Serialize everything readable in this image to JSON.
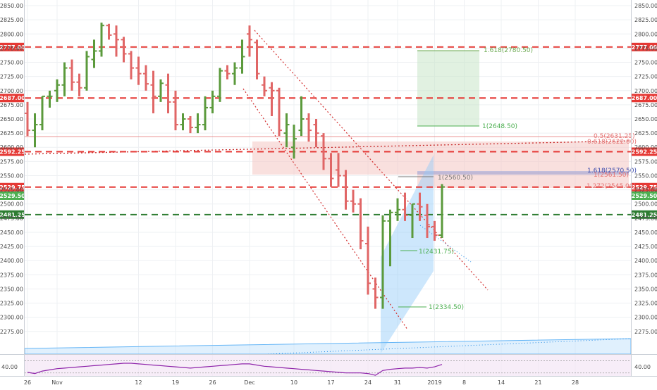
{
  "chart_data": {
    "type": "ohlc",
    "title": "",
    "xlabel": "",
    "ylabel": "",
    "ylim": [
      2235,
      2860
    ],
    "grid": true,
    "y_ticks": [
      2275,
      2300,
      2325,
      2350,
      2375,
      2400,
      2425,
      2450,
      2475,
      2500,
      2525,
      2550,
      2575,
      2600,
      2625,
      2650,
      2675,
      2700,
      2725,
      2750,
      2775,
      2800,
      2825,
      2850
    ],
    "x_ticks": [
      {
        "label": "26",
        "bar": 0
      },
      {
        "label": "Nov",
        "bar": 4
      },
      {
        "label": "12",
        "bar": 15
      },
      {
        "label": "19",
        "bar": 20
      },
      {
        "label": "26",
        "bar": 25
      },
      {
        "label": "Dec",
        "bar": 30
      },
      {
        "label": "10",
        "bar": 36
      },
      {
        "label": "17",
        "bar": 41
      },
      {
        "label": "24",
        "bar": 46
      },
      {
        "label": "31",
        "bar": 50
      },
      {
        "label": "2019",
        "bar": 55
      },
      {
        "label": "8",
        "bar": 59
      },
      {
        "label": "14",
        "bar": 64
      },
      {
        "label": "21",
        "bar": 69
      },
      {
        "label": "28",
        "bar": 74
      }
    ],
    "bars": [
      [
        2660,
        2680,
        2620,
        2630
      ],
      [
        2630,
        2660,
        2600,
        2640
      ],
      [
        2640,
        2690,
        2630,
        2690
      ],
      [
        2690,
        2700,
        2670,
        2690
      ],
      [
        2700,
        2720,
        2680,
        2710
      ],
      [
        2710,
        2750,
        2690,
        2740
      ],
      [
        2740,
        2755,
        2700,
        2715
      ],
      [
        2715,
        2730,
        2690,
        2705
      ],
      [
        2705,
        2770,
        2700,
        2760
      ],
      [
        2755,
        2790,
        2740,
        2770
      ],
      [
        2770,
        2820,
        2760,
        2815
      ],
      [
        2815,
        2818,
        2790,
        2798
      ],
      [
        2800,
        2815,
        2760,
        2790
      ],
      [
        2790,
        2795,
        2750,
        2765
      ],
      [
        2765,
        2770,
        2720,
        2740
      ],
      [
        2740,
        2760,
        2710,
        2730
      ],
      [
        2730,
        2745,
        2700,
        2712
      ],
      [
        2710,
        2735,
        2660,
        2690
      ],
      [
        2690,
        2720,
        2680,
        2713
      ],
      [
        2710,
        2730,
        2660,
        2680
      ],
      [
        2680,
        2700,
        2630,
        2640
      ],
      [
        2640,
        2660,
        2630,
        2650
      ],
      [
        2650,
        2655,
        2625,
        2635
      ],
      [
        2635,
        2660,
        2625,
        2640
      ],
      [
        2640,
        2690,
        2630,
        2670
      ],
      [
        2670,
        2700,
        2660,
        2690
      ],
      [
        2690,
        2740,
        2680,
        2735
      ],
      [
        2735,
        2745,
        2720,
        2730
      ],
      [
        2730,
        2750,
        2710,
        2740
      ],
      [
        2740,
        2790,
        2730,
        2760
      ],
      [
        2800,
        2815,
        2760,
        2790
      ],
      [
        2785,
        2790,
        2720,
        2730
      ],
      [
        2710,
        2725,
        2690,
        2700
      ],
      [
        2705,
        2715,
        2655,
        2700
      ],
      [
        2700,
        2705,
        2620,
        2630
      ],
      [
        2625,
        2660,
        2600,
        2640
      ],
      [
        2600,
        2640,
        2580,
        2615
      ],
      [
        2630,
        2690,
        2620,
        2650
      ],
      [
        2650,
        2660,
        2610,
        2630
      ],
      [
        2640,
        2650,
        2600,
        2625
      ],
      [
        2620,
        2625,
        2560,
        2580
      ],
      [
        2580,
        2590,
        2530,
        2545
      ],
      [
        2560,
        2590,
        2530,
        2550
      ],
      [
        2550,
        2560,
        2490,
        2505
      ],
      [
        2505,
        2525,
        2485,
        2500
      ],
      [
        2500,
        2510,
        2420,
        2435
      ],
      [
        2430,
        2460,
        2340,
        2360
      ],
      [
        2350,
        2370,
        2315,
        2335
      ],
      [
        2335,
        2480,
        2315,
        2470
      ],
      [
        2470,
        2490,
        2390,
        2485
      ],
      [
        2485,
        2510,
        2470,
        2490
      ],
      [
        2490,
        2520,
        2470,
        2480
      ],
      [
        2480,
        2500,
        2440,
        2500
      ],
      [
        2500,
        2520,
        2470,
        2495
      ],
      [
        2480,
        2500,
        2440,
        2460
      ],
      [
        2460,
        2470,
        2435,
        2445
      ],
      [
        2445,
        2535,
        2440,
        2530
      ]
    ],
    "h_levels": [
      {
        "label": "2777.00",
        "value": 2777.0,
        "color": "#e53935"
      },
      {
        "label": "2687.00",
        "value": 2687.0,
        "color": "#e53935"
      },
      {
        "label": "2592.25",
        "value": 2592.25,
        "color": "#e53935"
      },
      {
        "label": "2529.75",
        "value": 2529.75,
        "color": "#e53935"
      },
      {
        "label": "2481.25",
        "value": 2481.25,
        "color": "#2e7d32"
      }
    ],
    "current_price": {
      "label": "2529.50",
      "value": 2529.5,
      "color": "#4caf50"
    },
    "annotations": [
      {
        "text": "1.618(2780.50)",
        "value": 2780.5,
        "color": "#6aa84f"
      },
      {
        "text": "1(2648.50)",
        "value": 2648.5,
        "color": "#4caf50"
      },
      {
        "text": "0.5(2631.25)",
        "value": 2631.25,
        "color": "#e57373"
      },
      {
        "text": "0.618(2622.00)",
        "value": 2622.0,
        "color": "#e57373"
      },
      {
        "text": "1(2560.50)",
        "value": 2560.5,
        "color": "#777777"
      },
      {
        "text": "1.618(2570.50)",
        "value": 2570.5,
        "color": "#3949ab"
      },
      {
        "text": "1(2561.50)",
        "value": 2561.5,
        "color": "#e57373"
      },
      {
        "text": "1.272(2545.00)",
        "value": 2545.0,
        "color": "#e57373"
      },
      {
        "text": "1(2431.75)",
        "value": 2431.75,
        "color": "#4caf50"
      },
      {
        "text": "1(2334.50)",
        "value": 2334.5,
        "color": "#4caf50"
      }
    ],
    "indicator": {
      "label": "40.00",
      "value": 40,
      "ylim": [
        25,
        60
      ],
      "bands": [
        30,
        50
      ],
      "values": [
        31,
        29,
        33,
        35,
        37,
        38,
        39,
        40,
        41,
        42,
        43,
        44,
        45,
        46,
        46,
        45,
        44,
        43,
        42,
        41,
        40,
        39,
        38,
        39,
        40,
        41,
        42,
        43,
        44,
        45,
        45,
        43,
        41,
        40,
        39,
        38,
        37,
        36,
        35,
        34,
        33,
        32,
        31,
        30,
        30,
        30,
        29,
        26,
        34,
        36,
        37,
        38,
        38,
        39,
        38,
        40,
        44
      ]
    },
    "colors": {
      "up": "#5b9a3c",
      "down": "#e06666"
    }
  }
}
